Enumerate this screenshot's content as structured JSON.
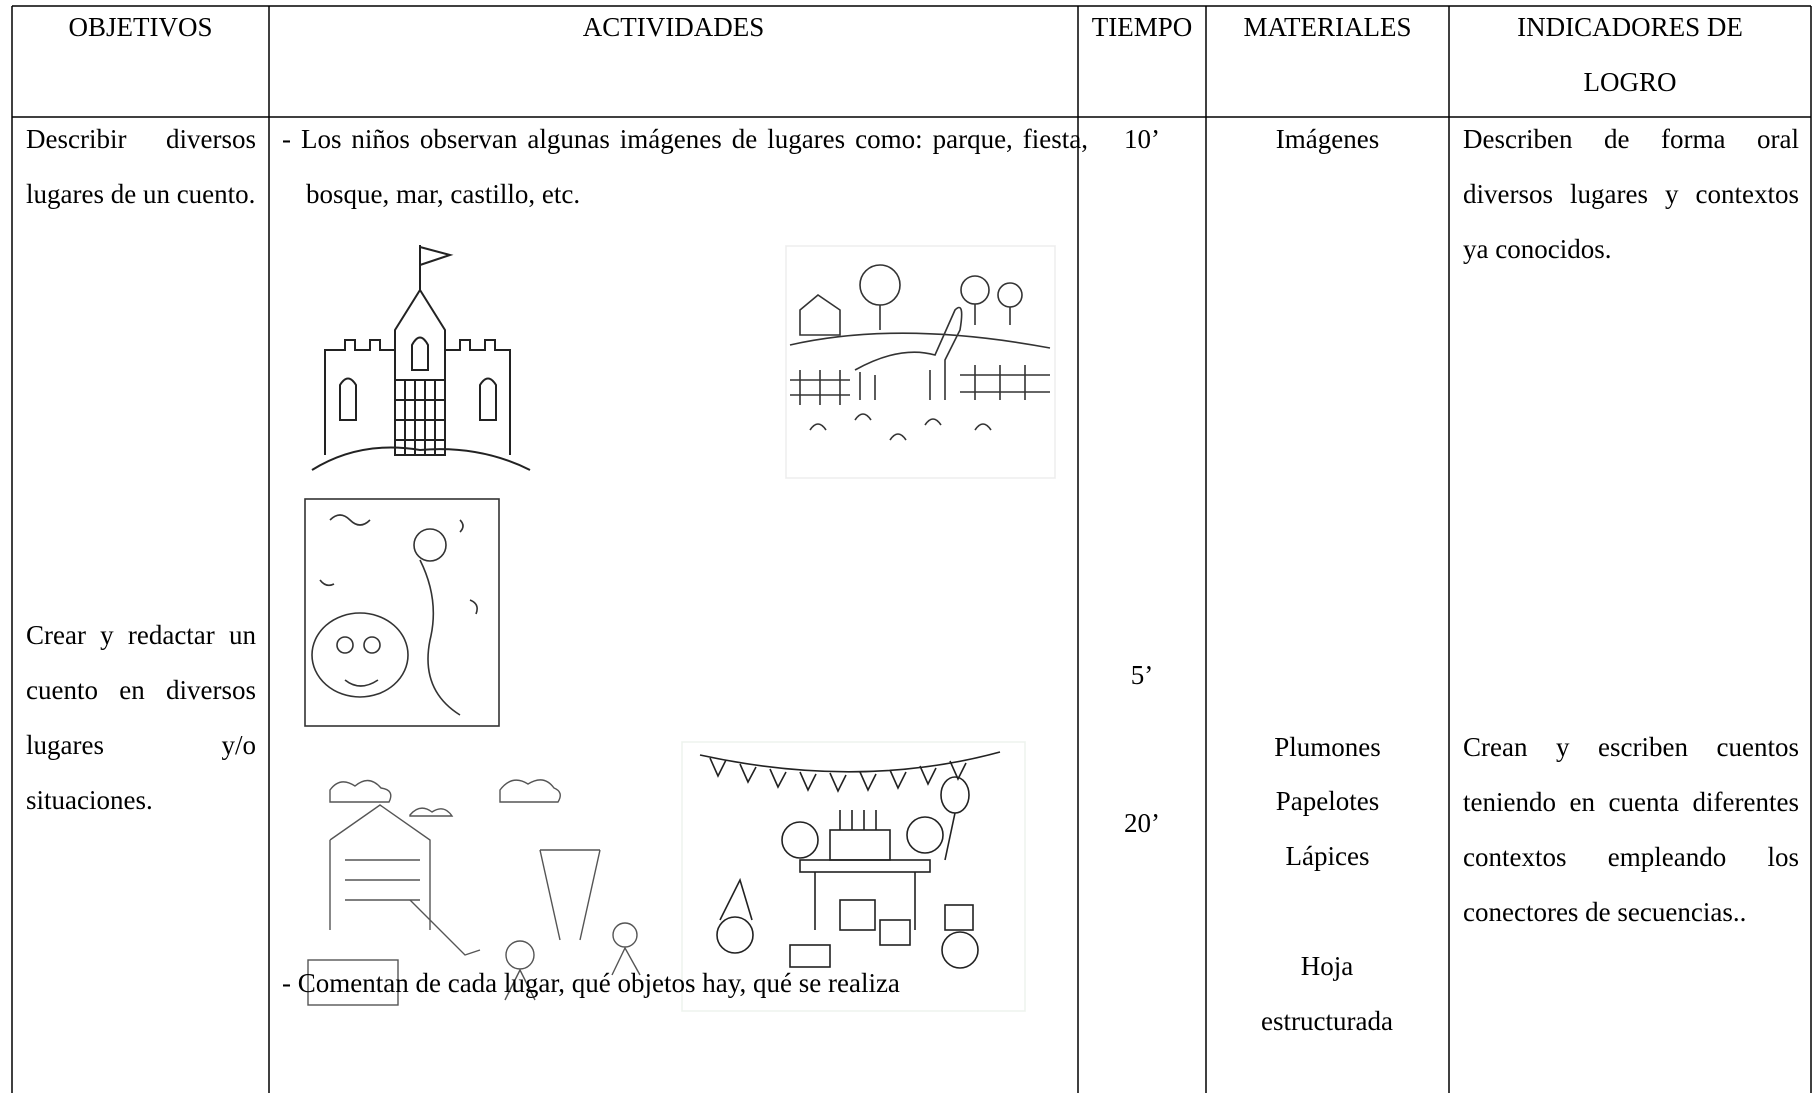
{
  "table": {
    "header": [
      "OBJETIVOS",
      "ACTIVIDADES",
      "TIEMPO",
      "MATERIALES",
      "INDICADORES DE LOGRO"
    ],
    "row": {
      "objetivos": [
        "Describir diversos lugares de un cuento.",
        "Crear y redactar un cuento en diversos lugares y/o situaciones."
      ],
      "actividades": [
        "- Los niños observan algunas imágenes de lugares como: parque, fiesta, bosque, mar, castillo, etc.",
        "- Comentan de cada lugar, qué objetos hay, qué se realiza"
      ],
      "tiempo": [
        "10’",
        "5’",
        "20’"
      ],
      "materiales": [
        "Imágenes",
        "Plumones",
        "Papelotes",
        "Lápices",
        "Hoja estructurada"
      ],
      "indicadores": [
        "Describen de forma oral diversos lugares y contextos ya conocidos.",
        "Crean y escriben cuentos teniendo en cuenta diferentes contextos empleando los conectores de secuencias.."
      ]
    }
  }
}
